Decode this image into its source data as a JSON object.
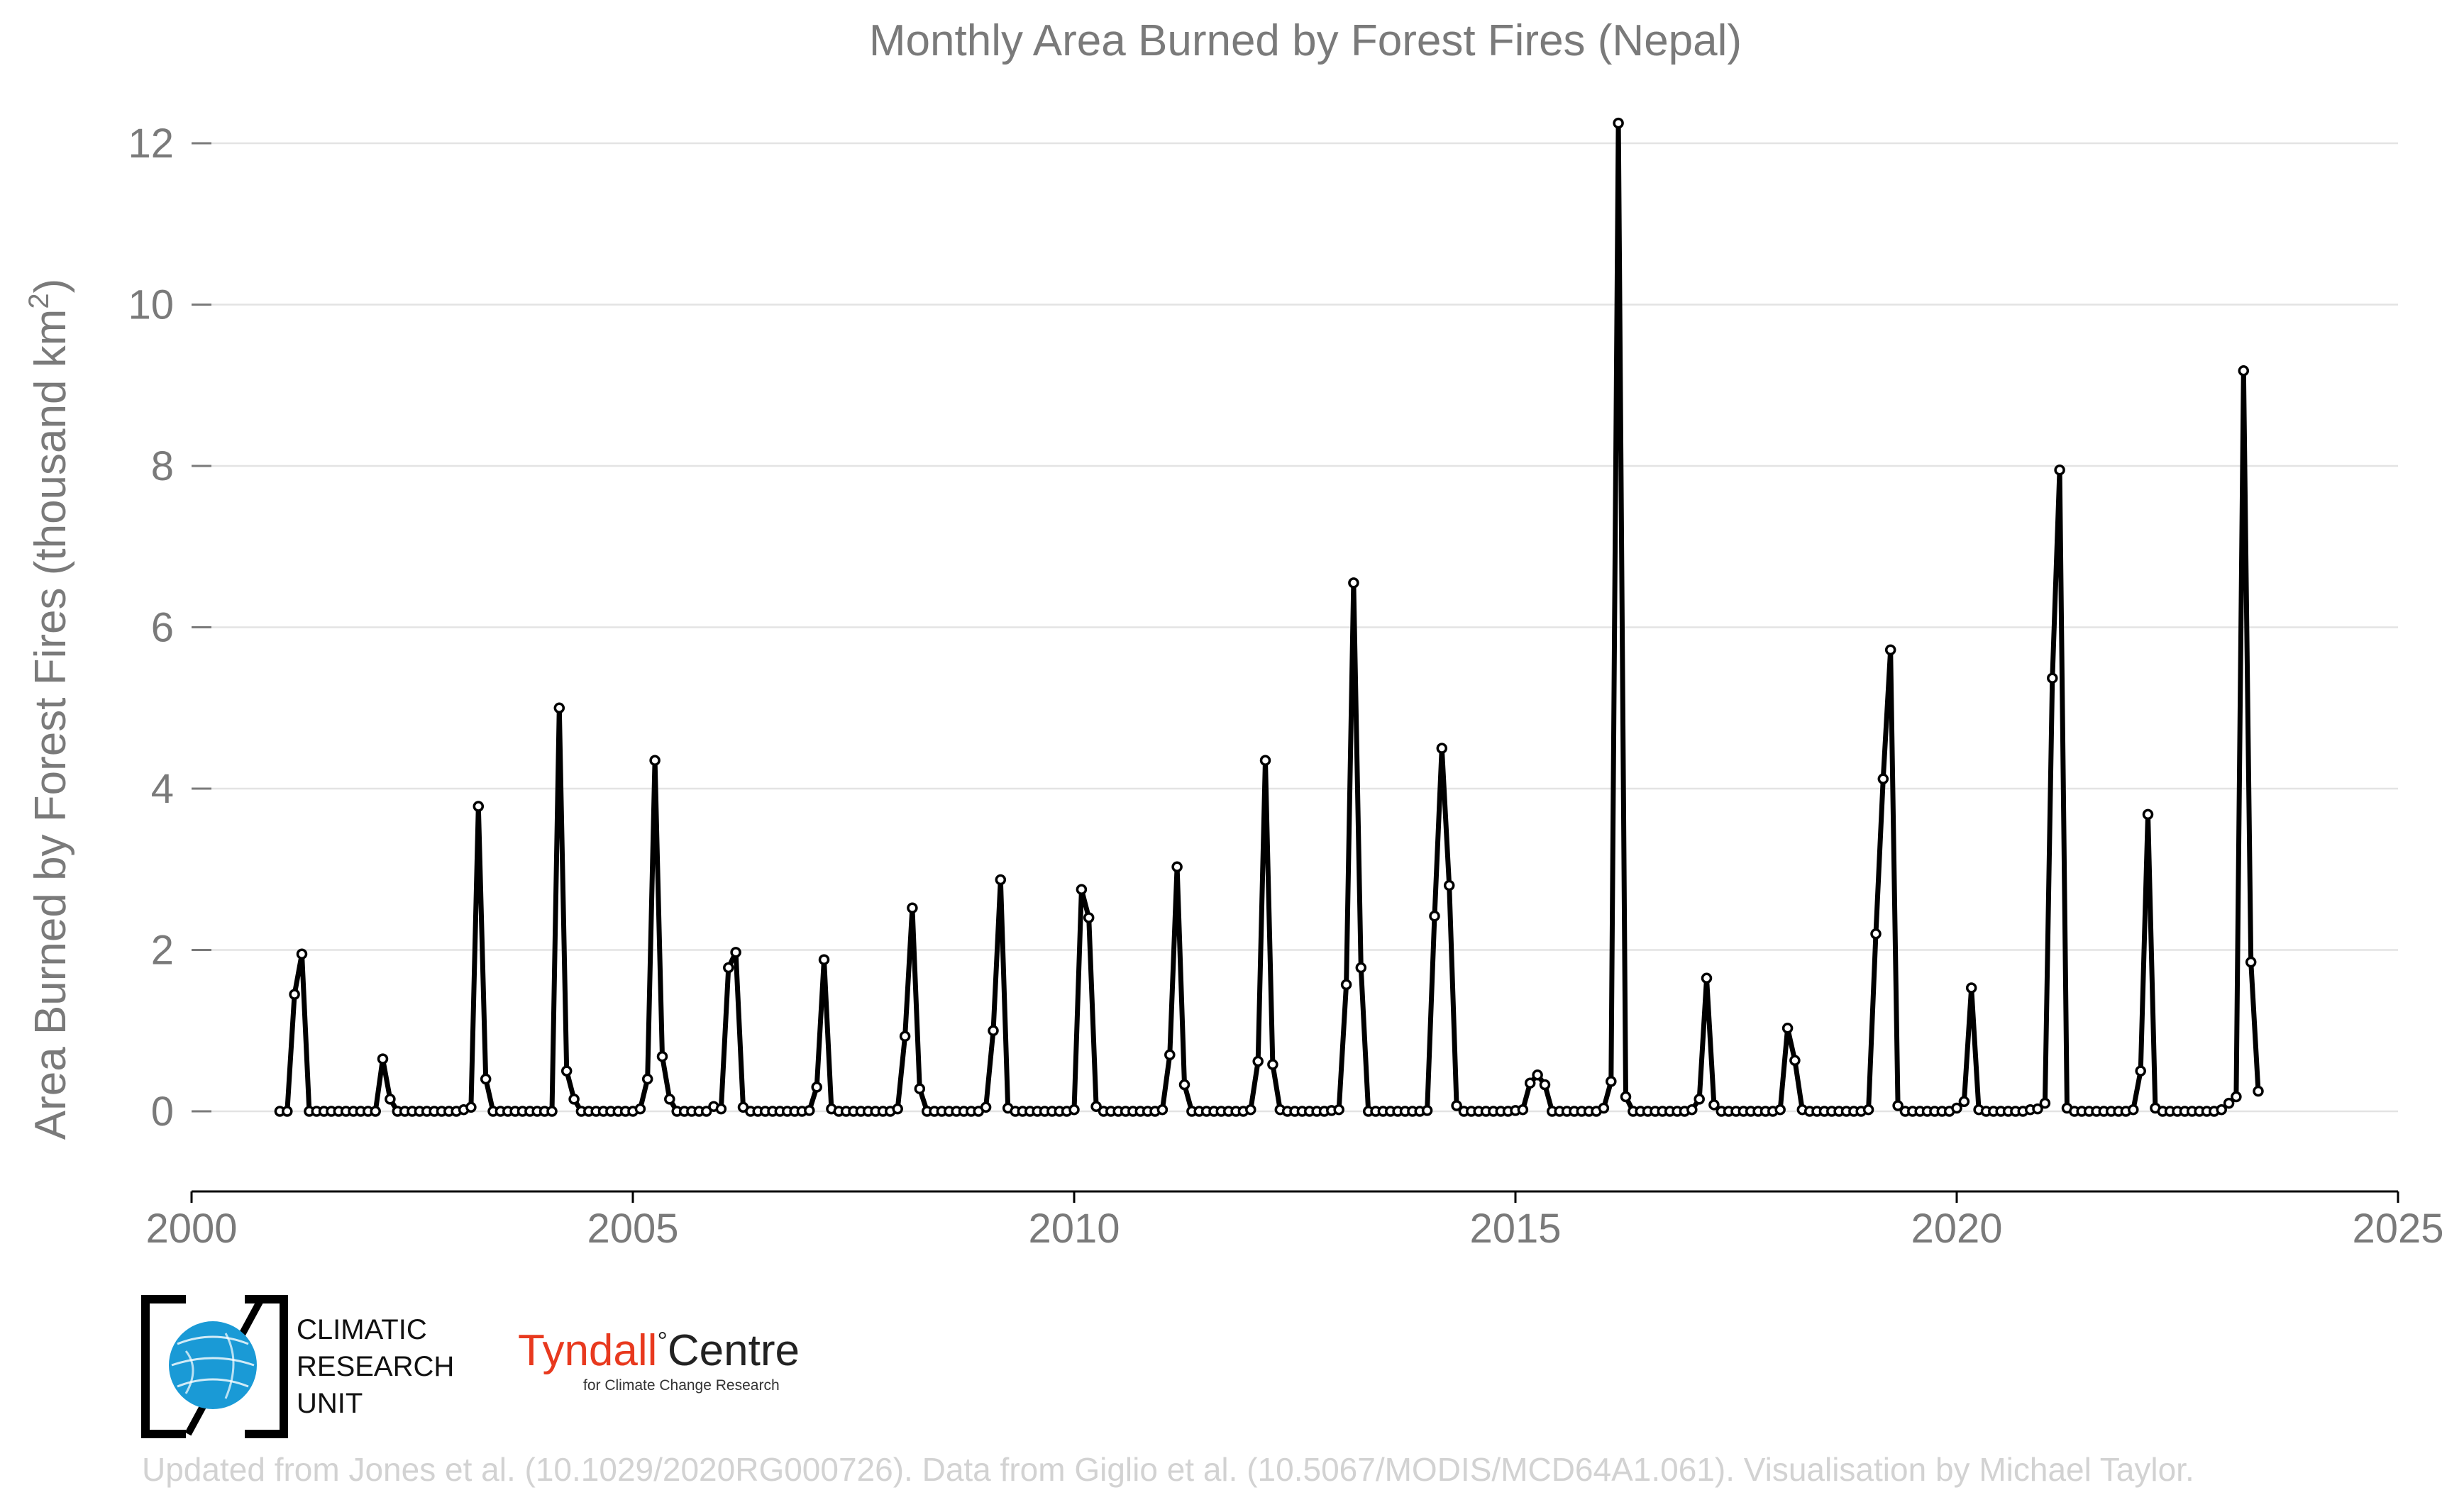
{
  "chart_data": {
    "type": "line",
    "title": "Monthly Area Burned by Forest Fires (Nepal)",
    "ylabel_main": "Area Burned by Forest Fires (thousand km",
    "ylabel_sup": "2",
    "ylabel_close": ")",
    "xlim": [
      2000,
      2025
    ],
    "ylim": [
      -1,
      12.5
    ],
    "xticks": [
      2000,
      2005,
      2010,
      2015,
      2020,
      2025
    ],
    "yticks": [
      0,
      2,
      4,
      6,
      8,
      10,
      12
    ],
    "grid": true,
    "series": [
      {
        "start_year": 2001,
        "start_month": 1,
        "values": [
          0,
          0,
          1.45,
          1.95,
          0,
          0,
          0,
          0,
          0,
          0,
          0,
          0,
          0,
          0,
          0.65,
          0.15,
          0,
          0,
          0,
          0,
          0,
          0,
          0,
          0,
          0,
          0.02,
          0.05,
          3.78,
          0.4,
          0,
          0,
          0,
          0,
          0,
          0,
          0,
          0,
          0,
          5.0,
          0.5,
          0.15,
          0,
          0,
          0,
          0,
          0,
          0,
          0,
          0,
          0.03,
          0.4,
          4.35,
          0.68,
          0.15,
          0,
          0,
          0,
          0,
          0,
          0.06,
          0.03,
          1.78,
          1.97,
          0.05,
          0,
          0,
          0,
          0,
          0,
          0,
          0,
          0,
          0.01,
          0.3,
          1.88,
          0.03,
          0,
          0,
          0,
          0,
          0,
          0,
          0,
          0,
          0.03,
          0.93,
          2.52,
          0.28,
          0,
          0,
          0,
          0,
          0,
          0,
          0,
          0,
          0.05,
          1.0,
          2.87,
          0.04,
          0,
          0,
          0,
          0,
          0,
          0,
          0,
          0,
          0.02,
          2.75,
          2.4,
          0.06,
          0,
          0,
          0,
          0,
          0,
          0,
          0,
          0,
          0.02,
          0.7,
          3.03,
          0.33,
          0,
          0,
          0,
          0,
          0,
          0,
          0,
          0,
          0.02,
          0.62,
          4.35,
          0.58,
          0.02,
          0,
          0,
          0,
          0,
          0,
          0,
          0.01,
          0.02,
          1.57,
          6.55,
          1.78,
          0,
          0,
          0,
          0,
          0,
          0,
          0,
          0,
          0.01,
          2.42,
          4.5,
          2.8,
          0.07,
          0,
          0,
          0,
          0,
          0,
          0,
          0,
          0.01,
          0.02,
          0.35,
          0.45,
          0.33,
          0,
          0,
          0,
          0,
          0,
          0,
          0,
          0.04,
          0.37,
          12.25,
          0.18,
          0,
          0,
          0,
          0,
          0,
          0,
          0,
          0,
          0.02,
          0.15,
          1.65,
          0.08,
          0,
          0,
          0,
          0,
          0,
          0,
          0,
          0,
          0.02,
          1.03,
          0.63,
          0.02,
          0,
          0,
          0,
          0,
          0,
          0,
          0,
          0,
          0.02,
          2.2,
          4.12,
          5.72,
          0.07,
          0,
          0,
          0,
          0,
          0,
          0,
          0,
          0.04,
          0.12,
          1.53,
          0.02,
          0,
          0,
          0,
          0,
          0,
          0,
          0.02,
          0.03,
          0.1,
          5.37,
          7.95,
          0.04,
          0,
          0,
          0,
          0,
          0,
          0,
          0,
          0,
          0.02,
          0.5,
          3.68,
          0.04,
          0,
          0,
          0,
          0,
          0,
          0,
          0,
          0,
          0.02,
          0.1,
          0.18,
          9.18,
          1.85,
          0.25
        ]
      }
    ]
  },
  "logos": {
    "cru_line1": "CLIMATIC",
    "cru_line2": "RESEARCH",
    "cru_line3": "UNIT",
    "tyndall_name": "Tyndall",
    "tyndall_degree": "°",
    "tyndall_centre": "Centre",
    "tyndall_sub": "for Climate Change Research"
  },
  "credit": "Updated from Jones et al. (10.1029/2020RG000726). Data from Giglio et al. (10.5067/MODIS/MCD64A1.061). Visualisation by Michael Taylor.",
  "colors": {
    "series": "#000000",
    "text": "#7a7a7a",
    "grid": "#e3e3e3",
    "credit": "#d2d2d2",
    "tyndall_red": "#e8391e",
    "cru_blue": "#1a9ad6"
  }
}
